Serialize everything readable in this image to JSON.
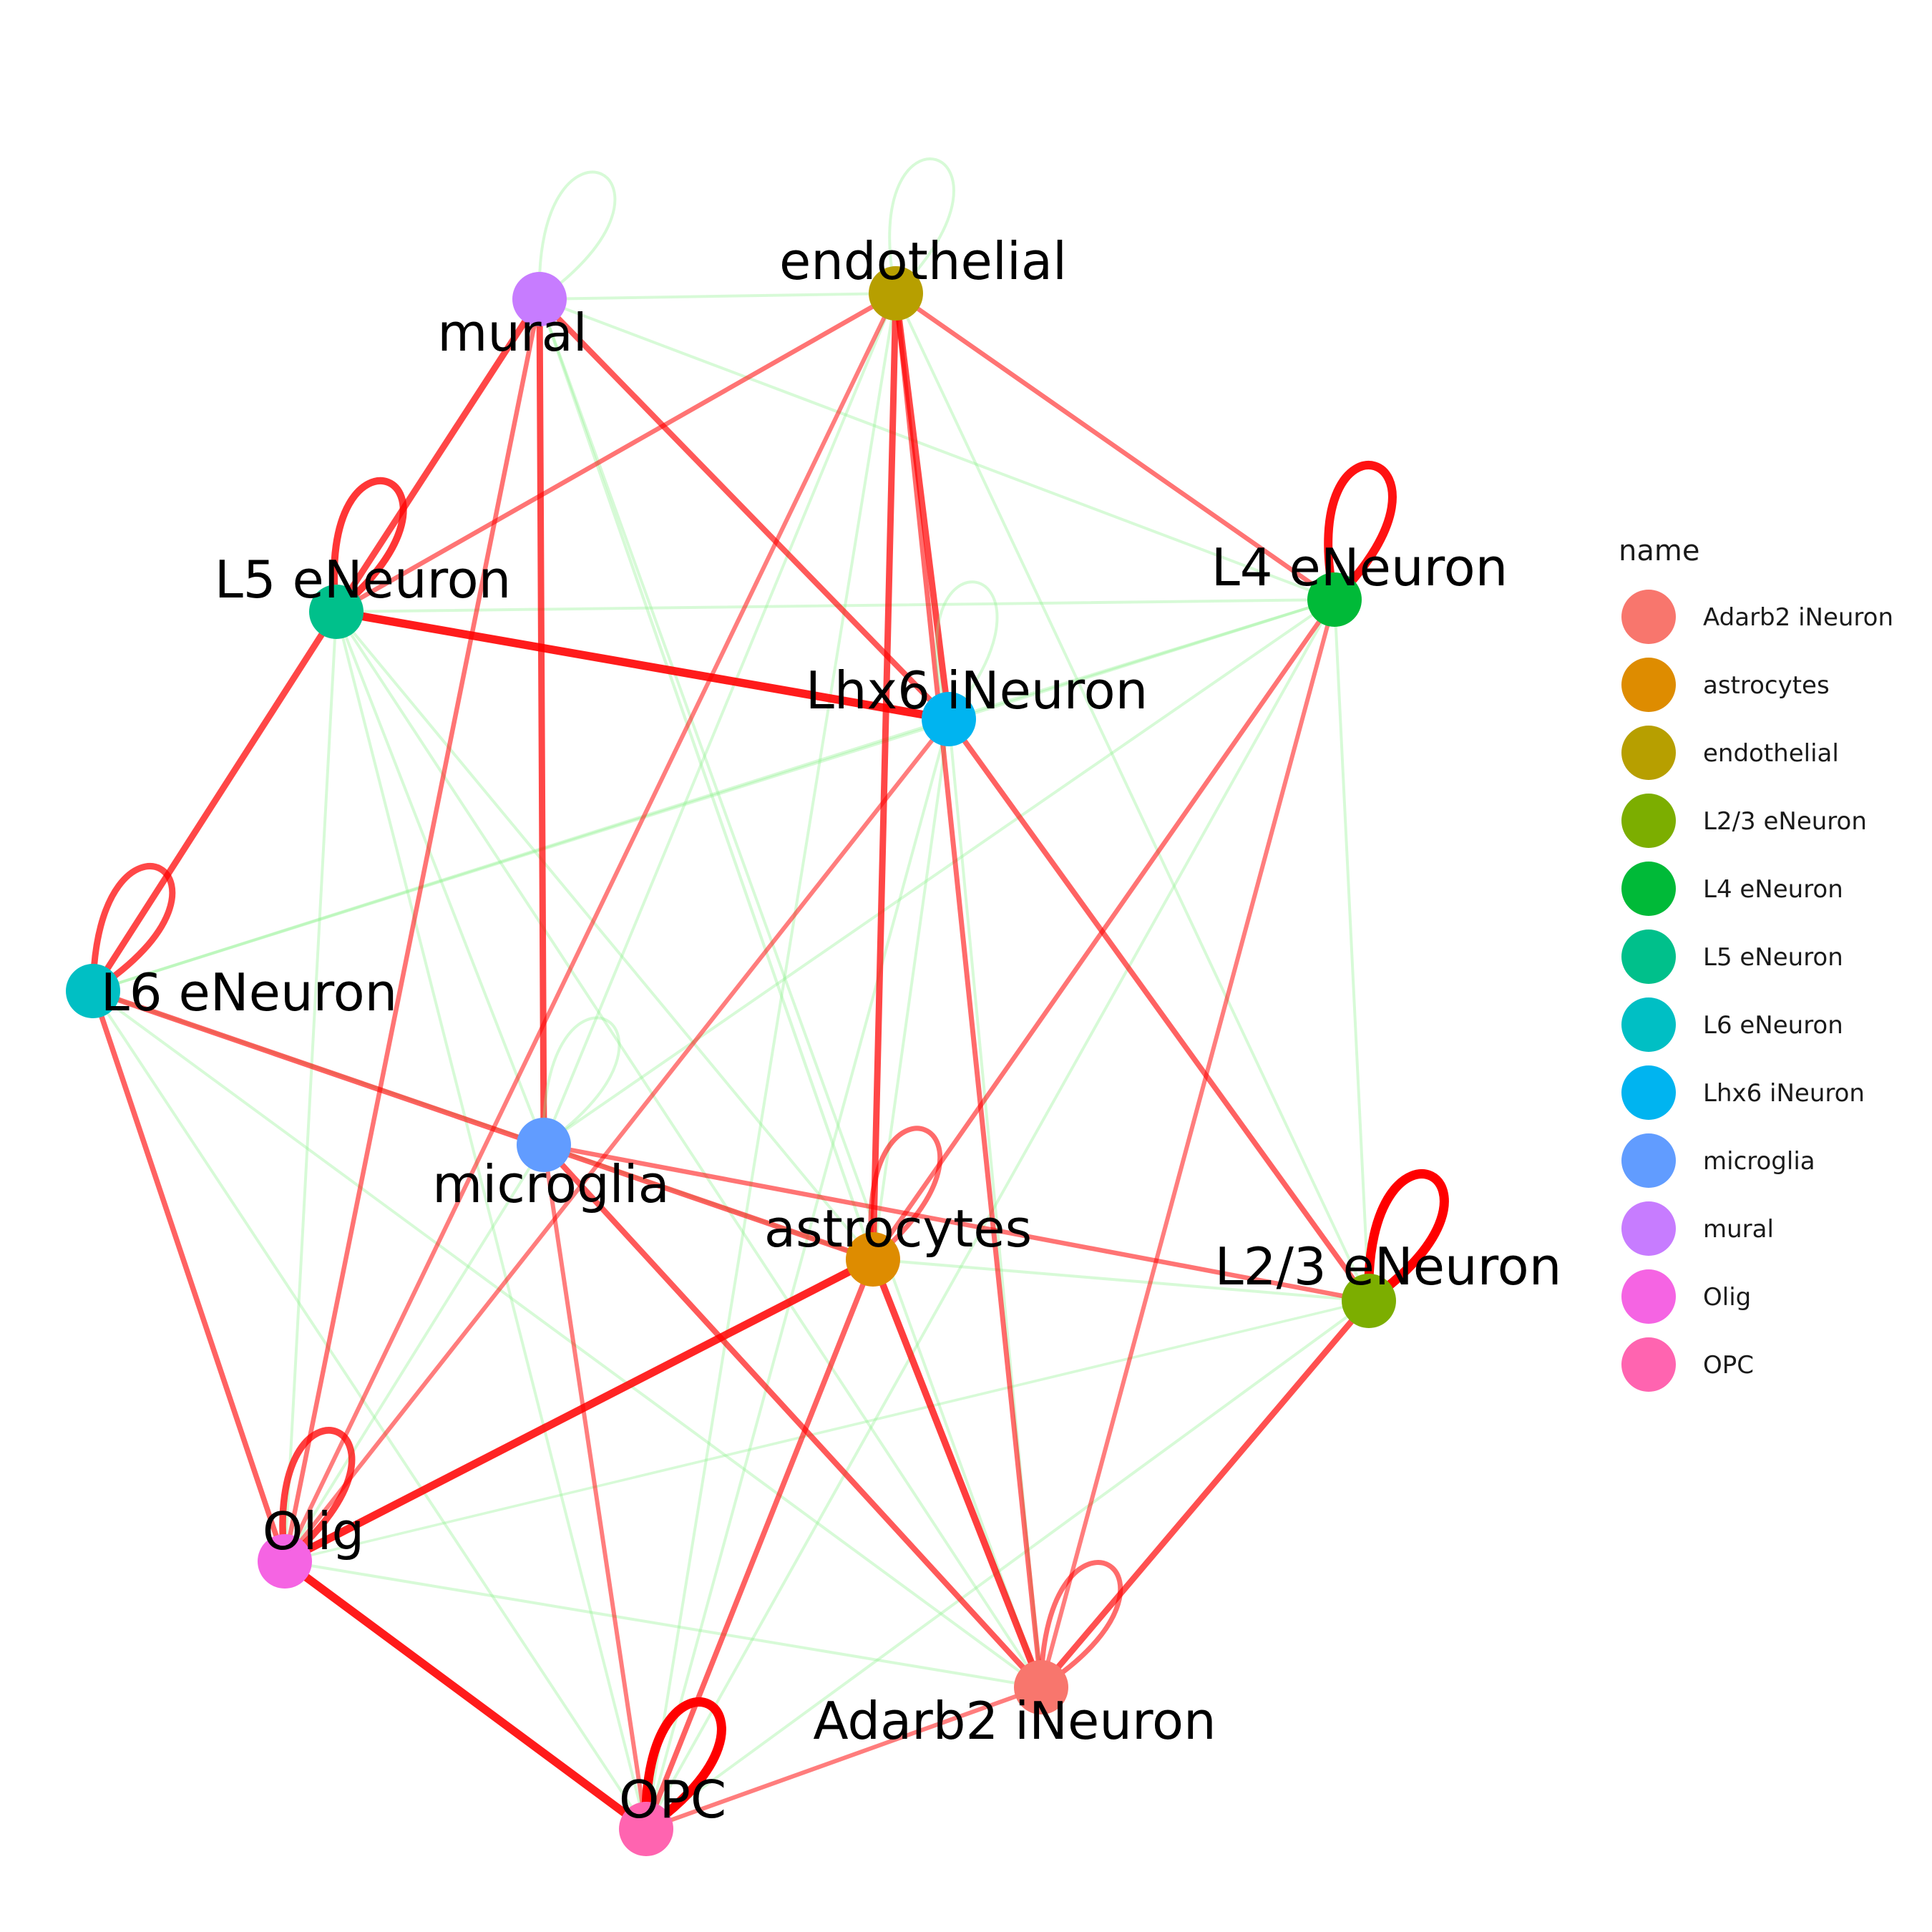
{
  "legend": {
    "title": "name",
    "items": [
      {
        "label": "Adarb2 iNeuron",
        "color": "#F8766D"
      },
      {
        "label": "astrocytes",
        "color": "#DE8C00"
      },
      {
        "label": "endothelial",
        "color": "#B79F00"
      },
      {
        "label": "L2/3 eNeuron",
        "color": "#7CAE00"
      },
      {
        "label": "L4 eNeuron",
        "color": "#00BA38"
      },
      {
        "label": "L5 eNeuron",
        "color": "#00C08B"
      },
      {
        "label": "L6 eNeuron",
        "color": "#00BFC4"
      },
      {
        "label": "Lhx6 iNeuron",
        "color": "#00B4F0"
      },
      {
        "label": "microglia",
        "color": "#619CFF"
      },
      {
        "label": "mural",
        "color": "#C77CFF"
      },
      {
        "label": "Olig",
        "color": "#F564E3"
      },
      {
        "label": "OPC",
        "color": "#FF64B0"
      }
    ]
  },
  "nodes": [
    {
      "id": "Adarb2",
      "label": "Adarb2 iNeuron",
      "color": "#F8766D"
    },
    {
      "id": "astro",
      "label": "astrocytes",
      "color": "#DE8C00"
    },
    {
      "id": "endo",
      "label": "endothelial",
      "color": "#B79F00"
    },
    {
      "id": "L23",
      "label": "L2/3 eNeuron",
      "color": "#7CAE00"
    },
    {
      "id": "L4",
      "label": "L4 eNeuron",
      "color": "#00BA38"
    },
    {
      "id": "L5",
      "label": "L5 eNeuron",
      "color": "#00C08B"
    },
    {
      "id": "L6",
      "label": "L6 eNeuron",
      "color": "#00BFC4"
    },
    {
      "id": "Lhx6",
      "label": "Lhx6 iNeuron",
      "color": "#00B4F0"
    },
    {
      "id": "micro",
      "label": "microglia",
      "color": "#619CFF"
    },
    {
      "id": "mural",
      "label": "mural",
      "color": "#C77CFF"
    },
    {
      "id": "Olig",
      "label": "Olig",
      "color": "#F564E3"
    },
    {
      "id": "OPC",
      "label": "OPC",
      "color": "#FF64B0"
    }
  ],
  "edge_colors": {
    "strong": "#FF0000",
    "weak": "#8CF08C"
  },
  "edges": [
    {
      "from": "L5",
      "to": "Lhx6",
      "weight": 0.85
    },
    {
      "from": "Olig",
      "to": "OPC",
      "weight": 0.85
    },
    {
      "from": "Olig",
      "to": "astro",
      "weight": 0.8
    },
    {
      "from": "endo",
      "to": "astro",
      "weight": 0.6
    },
    {
      "from": "endo",
      "to": "Lhx6",
      "weight": 0.6
    },
    {
      "from": "mural",
      "to": "micro",
      "weight": 0.6
    },
    {
      "from": "mural",
      "to": "L5",
      "weight": 0.6
    },
    {
      "from": "L5",
      "to": "L6",
      "weight": 0.6
    },
    {
      "from": "astro",
      "to": "Adarb2",
      "weight": 0.65
    },
    {
      "from": "L23",
      "to": "Adarb2",
      "weight": 0.55
    },
    {
      "from": "micro",
      "to": "Adarb2",
      "weight": 0.5
    },
    {
      "from": "L6",
      "to": "astro",
      "weight": 0.45
    },
    {
      "from": "mural",
      "to": "Lhx6",
      "weight": 0.5
    },
    {
      "from": "Lhx6",
      "to": "L23",
      "weight": 0.45
    },
    {
      "from": "L6",
      "to": "Olig",
      "weight": 0.45
    },
    {
      "from": "endo",
      "to": "Adarb2",
      "weight": 0.4
    },
    {
      "from": "astro",
      "to": "OPC",
      "weight": 0.45
    },
    {
      "from": "micro",
      "to": "L23",
      "weight": 0.35
    },
    {
      "from": "endo",
      "to": "L4",
      "weight": 0.35
    },
    {
      "from": "endo",
      "to": "L5",
      "weight": 0.35
    },
    {
      "from": "L4",
      "to": "astro",
      "weight": 0.35
    },
    {
      "from": "endo",
      "to": "Olig",
      "weight": 0.3
    },
    {
      "from": "Lhx6",
      "to": "Olig",
      "weight": 0.3
    },
    {
      "from": "mural",
      "to": "Olig",
      "weight": 0.35
    },
    {
      "from": "L4",
      "to": "Adarb2",
      "weight": 0.3
    },
    {
      "from": "micro",
      "to": "OPC",
      "weight": 0.3
    },
    {
      "from": "Adarb2",
      "to": "OPC",
      "weight": 0.3
    },
    {
      "from": "mural",
      "to": "endo",
      "weight": 0.1
    },
    {
      "from": "mural",
      "to": "L4",
      "weight": 0.1
    },
    {
      "from": "mural",
      "to": "astro",
      "weight": 0.12
    },
    {
      "from": "mural",
      "to": "Adarb2",
      "weight": 0.1
    },
    {
      "from": "endo",
      "to": "micro",
      "weight": 0.1
    },
    {
      "from": "endo",
      "to": "OPC",
      "weight": 0.1
    },
    {
      "from": "endo",
      "to": "L23",
      "weight": 0.1
    },
    {
      "from": "L5",
      "to": "L4",
      "weight": 0.1
    },
    {
      "from": "L5",
      "to": "astro",
      "weight": 0.1
    },
    {
      "from": "L5",
      "to": "Olig",
      "weight": 0.1
    },
    {
      "from": "L5",
      "to": "OPC",
      "weight": 0.1
    },
    {
      "from": "L5",
      "to": "Adarb2",
      "weight": 0.1
    },
    {
      "from": "L5",
      "to": "micro",
      "weight": 0.1
    },
    {
      "from": "L4",
      "to": "L6",
      "weight": 0.1
    },
    {
      "from": "L4",
      "to": "L23",
      "weight": 0.1
    },
    {
      "from": "L4",
      "to": "micro",
      "weight": 0.1
    },
    {
      "from": "L4",
      "to": "Lhx6",
      "weight": 0.1
    },
    {
      "from": "L4",
      "to": "OPC",
      "weight": 0.1
    },
    {
      "from": "Lhx6",
      "to": "L6",
      "weight": 0.1
    },
    {
      "from": "Lhx6",
      "to": "OPC",
      "weight": 0.1
    },
    {
      "from": "Lhx6",
      "to": "astro",
      "weight": 0.1
    },
    {
      "from": "Lhx6",
      "to": "Adarb2",
      "weight": 0.1
    },
    {
      "from": "L6",
      "to": "OPC",
      "weight": 0.1
    },
    {
      "from": "L6",
      "to": "Adarb2",
      "weight": 0.1
    },
    {
      "from": "L6",
      "to": "micro",
      "weight": 0.1
    },
    {
      "from": "micro",
      "to": "Olig",
      "weight": 0.1
    },
    {
      "from": "micro",
      "to": "astro",
      "weight": 0.1
    },
    {
      "from": "astro",
      "to": "L23",
      "weight": 0.1
    },
    {
      "from": "Olig",
      "to": "Adarb2",
      "weight": 0.1
    },
    {
      "from": "Olig",
      "to": "L23",
      "weight": 0.06
    },
    {
      "from": "OPC",
      "to": "L23",
      "weight": 0.1
    }
  ],
  "self_loops": [
    {
      "node": "mural",
      "weight": 0.1
    },
    {
      "node": "endo",
      "weight": 0.1
    },
    {
      "node": "L5",
      "weight": 0.7
    },
    {
      "node": "L4",
      "weight": 0.9
    },
    {
      "node": "Lhx6",
      "weight": 0.1
    },
    {
      "node": "L6",
      "weight": 0.6
    },
    {
      "node": "micro",
      "weight": 0.1
    },
    {
      "node": "astro",
      "weight": 0.4
    },
    {
      "node": "L23",
      "weight": 1.0
    },
    {
      "node": "Olig",
      "weight": 0.65
    },
    {
      "node": "Adarb2",
      "weight": 0.4
    },
    {
      "node": "OPC",
      "weight": 1.0
    }
  ]
}
